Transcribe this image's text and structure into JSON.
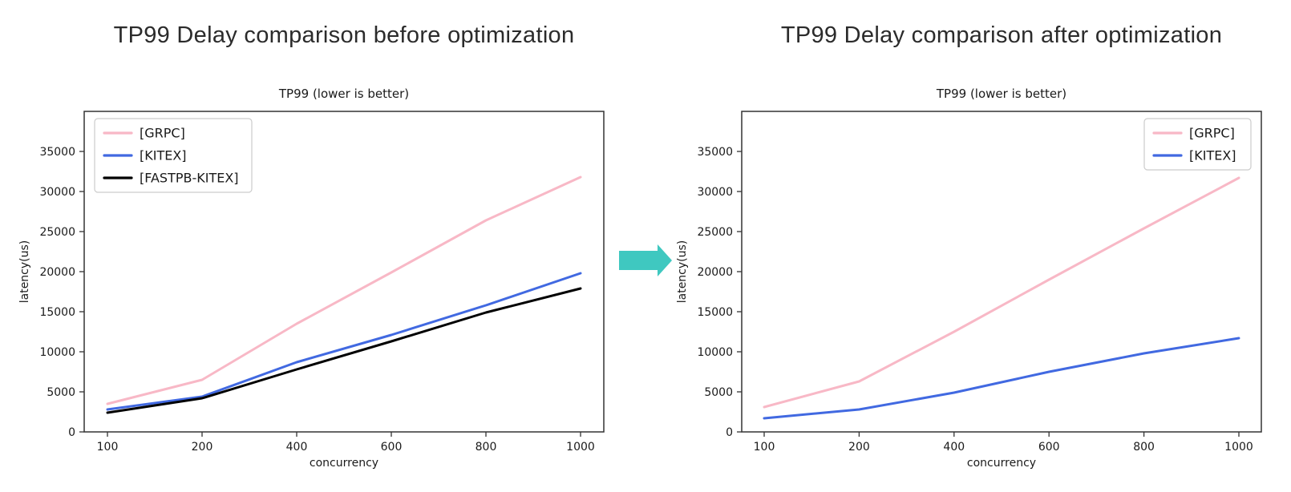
{
  "page": {
    "background": "#ffffff",
    "arrow_color": "#3fc8c0"
  },
  "panels": [
    {
      "heading": "TP99 Delay comparison before optimization"
    },
    {
      "heading": "TP99 Delay comparison after optimization"
    }
  ],
  "chart_data": [
    {
      "type": "line",
      "title": "TP99 (lower is better)",
      "xlabel": "concurrency",
      "ylabel": "latency(us)",
      "categories": [
        "100",
        "200",
        "400",
        "600",
        "800",
        "1000"
      ],
      "yticks": [
        0,
        5000,
        10000,
        15000,
        20000,
        25000,
        30000,
        35000
      ],
      "ylim": [
        0,
        40000
      ],
      "grid": false,
      "legend_position": "upper left",
      "series": [
        {
          "name": "[GRPC]",
          "color": "#f8b8c6",
          "values": [
            3500,
            6500,
            13500,
            19900,
            26400,
            31800
          ]
        },
        {
          "name": "[KITEX]",
          "color": "#4169e1",
          "values": [
            2800,
            4400,
            8700,
            12100,
            15800,
            19800
          ]
        },
        {
          "name": "[FASTPB-KITEX]",
          "color": "#000000",
          "values": [
            2400,
            4200,
            7800,
            11300,
            14900,
            17900
          ]
        }
      ]
    },
    {
      "type": "line",
      "title": "TP99 (lower is better)",
      "xlabel": "concurrency",
      "ylabel": "latency(us)",
      "categories": [
        "100",
        "200",
        "400",
        "600",
        "800",
        "1000"
      ],
      "yticks": [
        0,
        5000,
        10000,
        15000,
        20000,
        25000,
        30000,
        35000
      ],
      "ylim": [
        0,
        40000
      ],
      "grid": false,
      "legend_position": "upper right",
      "series": [
        {
          "name": "[GRPC]",
          "color": "#f8b8c6",
          "values": [
            3100,
            6300,
            12500,
            19000,
            25400,
            31700
          ]
        },
        {
          "name": "[KITEX]",
          "color": "#4169e1",
          "values": [
            1700,
            2800,
            4900,
            7500,
            9800,
            11700
          ]
        }
      ]
    }
  ]
}
